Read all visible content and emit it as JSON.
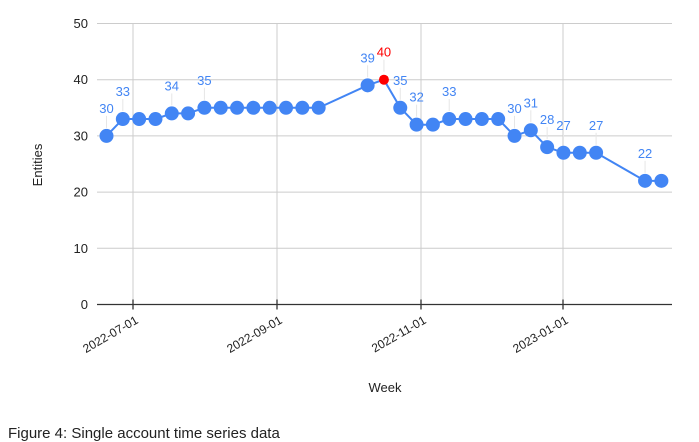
{
  "figure": {
    "caption": "Figure 4: Single account time series data"
  },
  "colors": {
    "series": "#4285f4",
    "highlight": "#ff0000",
    "grid": "#cccccc",
    "axis": "#333333",
    "text": "#222222"
  },
  "chart_data": {
    "type": "line",
    "title": "",
    "xlabel": "Week",
    "ylabel": "Entities",
    "ylim": [
      0,
      50
    ],
    "yticks": [
      0,
      10,
      20,
      30,
      40,
      50
    ],
    "xticks": [
      "2022-07-01",
      "2022-09-01",
      "2022-11-01",
      "2023-01-01"
    ],
    "grid": true,
    "legend": "none",
    "series": [
      {
        "name": "Entities",
        "points": [
          {
            "week": 0,
            "value": 30,
            "label": "30"
          },
          {
            "week": 1,
            "value": 33,
            "label": "33"
          },
          {
            "week": 2,
            "value": 33
          },
          {
            "week": 3,
            "value": 33
          },
          {
            "week": 4,
            "value": 34,
            "label": "34"
          },
          {
            "week": 5,
            "value": 34
          },
          {
            "week": 6,
            "value": 35,
            "label": "35"
          },
          {
            "week": 7,
            "value": 35
          },
          {
            "week": 8,
            "value": 35
          },
          {
            "week": 9,
            "value": 35
          },
          {
            "week": 10,
            "value": 35
          },
          {
            "week": 11,
            "value": 35
          },
          {
            "week": 12,
            "value": 35
          },
          {
            "week": 13,
            "value": 35
          },
          {
            "week": 16,
            "value": 39,
            "label": "39"
          },
          {
            "week": 17,
            "value": 40,
            "label": "40",
            "highlight": true
          },
          {
            "week": 18,
            "value": 35,
            "label": "35"
          },
          {
            "week": 19,
            "value": 32,
            "label": "32"
          },
          {
            "week": 20,
            "value": 32
          },
          {
            "week": 21,
            "value": 33,
            "label": "33"
          },
          {
            "week": 22,
            "value": 33
          },
          {
            "week": 23,
            "value": 33
          },
          {
            "week": 24,
            "value": 33
          },
          {
            "week": 25,
            "value": 30,
            "label": "30"
          },
          {
            "week": 26,
            "value": 31,
            "label": "31"
          },
          {
            "week": 27,
            "value": 28,
            "label": "28"
          },
          {
            "week": 28,
            "value": 27,
            "label": "27"
          },
          {
            "week": 29,
            "value": 27
          },
          {
            "week": 30,
            "value": 27,
            "label": "27"
          },
          {
            "week": 33,
            "value": 22,
            "label": "22"
          },
          {
            "week": 34,
            "value": 22
          }
        ]
      }
    ]
  }
}
